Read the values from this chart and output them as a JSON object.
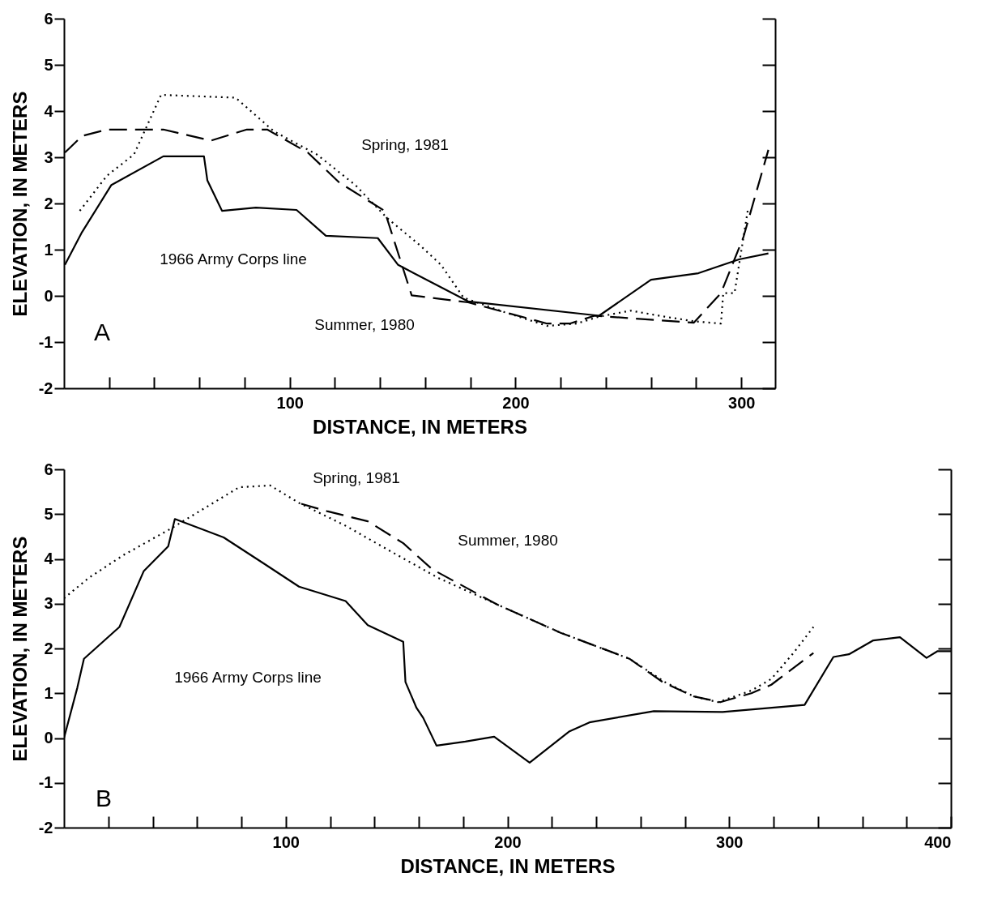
{
  "chart_data": [
    {
      "type": "line",
      "xlabel": "DISTANCE, IN METERS",
      "ylabel": "ELEVATION, IN METERS",
      "xlim": [
        0,
        315
      ],
      "ylim": [
        -2,
        6
      ],
      "xticks": [
        {
          "value": 20,
          "label": null
        },
        {
          "value": 40,
          "label": null
        },
        {
          "value": 60,
          "label": null
        },
        {
          "value": 80,
          "label": null
        },
        100,
        {
          "value": 120,
          "label": null
        },
        {
          "value": 140,
          "label": null
        },
        {
          "value": 160,
          "label": null
        },
        {
          "value": 180,
          "label": null
        },
        200,
        {
          "value": 220,
          "label": null
        },
        {
          "value": 240,
          "label": null
        },
        {
          "value": 260,
          "label": null
        },
        {
          "value": 280,
          "label": null
        },
        300
      ],
      "yticks": [
        -2,
        -1,
        0,
        1,
        2,
        3,
        4,
        5,
        6
      ],
      "annotations": [
        "Spring, 1981",
        "1966 Army Corps line",
        "Summer, 1980",
        "A"
      ],
      "series": [
        {
          "type": "line",
          "line_style": "solid",
          "color": "#000000",
          "x": [
            0.4,
            8,
            21,
            44,
            62,
            63.5,
            70,
            85,
            103,
            116,
            139,
            148,
            179,
            237,
            260,
            281,
            299,
            312
          ],
          "values": [
            0.67,
            1.38,
            2.4,
            3.02,
            3.02,
            2.5,
            1.84,
            1.91,
            1.86,
            1.3,
            1.25,
            0.67,
            -0.12,
            -0.43,
            0.35,
            0.49,
            0.79,
            0.92
          ]
        },
        {
          "type": "line",
          "line_style": "dashed",
          "color": "#000000",
          "x": [
            0.4,
            8,
            19,
            44,
            65,
            81,
            90,
            108,
            122,
            142,
            154,
            179,
            214,
            224,
            235,
            279,
            291,
            301,
            312
          ],
          "values": [
            3.1,
            3.46,
            3.6,
            3.6,
            3.36,
            3.6,
            3.6,
            3.1,
            2.45,
            1.84,
            0.01,
            -0.14,
            -0.6,
            -0.6,
            -0.43,
            -0.58,
            0.06,
            1.28,
            3.16
          ]
        },
        {
          "type": "line",
          "line_style": "dotted",
          "color": "#000000",
          "x": [
            7,
            19,
            31,
            43,
            76,
            93,
            112,
            129,
            143,
            158,
            167,
            177,
            195,
            214,
            227,
            237,
            251,
            266,
            279,
            291,
            292,
            297,
            303
          ],
          "values": [
            1.84,
            2.6,
            3.06,
            4.35,
            4.29,
            3.56,
            3.06,
            2.4,
            1.69,
            1.08,
            0.67,
            -0.04,
            -0.35,
            -0.65,
            -0.6,
            -0.45,
            -0.32,
            -0.45,
            -0.55,
            -0.6,
            0.06,
            0.06,
            1.89
          ]
        }
      ]
    },
    {
      "type": "line",
      "xlabel": "DISTANCE, IN METERS",
      "ylabel": "ELEVATION, IN METERS",
      "xlim": [
        0,
        400
      ],
      "ylim": [
        -2,
        6
      ],
      "xticks": [
        {
          "value": 20,
          "label": null
        },
        {
          "value": 40,
          "label": null
        },
        {
          "value": 60,
          "label": null
        },
        {
          "value": 80,
          "label": null
        },
        100,
        {
          "value": 120,
          "label": null
        },
        {
          "value": 140,
          "label": null
        },
        {
          "value": 160,
          "label": null
        },
        {
          "value": 180,
          "label": null
        },
        200,
        {
          "value": 220,
          "label": null
        },
        {
          "value": 240,
          "label": null
        },
        {
          "value": 260,
          "label": null
        },
        {
          "value": 280,
          "label": null
        },
        300,
        {
          "value": 320,
          "label": null
        },
        {
          "value": 340,
          "label": null
        },
        {
          "value": 360,
          "label": null
        },
        {
          "value": 380,
          "label": null
        },
        400
      ],
      "yticks": [
        -2,
        -1,
        0,
        1,
        2,
        3,
        4,
        5,
        6
      ],
      "annotations": [
        "Spring, 1981",
        "Summer, 1980",
        "1966 Army Corps line",
        "B"
      ],
      "series": [
        {
          "type": "line",
          "line_style": "solid",
          "color": "#000000",
          "x": [
            0,
            6,
            9,
            25,
            36,
            47,
            50,
            72,
            90,
            106,
            127,
            137,
            153,
            154,
            159,
            162,
            168,
            181,
            194,
            210,
            228,
            237,
            266,
            297,
            334,
            347,
            354,
            365,
            377,
            389,
            394,
            400
          ],
          "values": [
            0,
            1.12,
            1.77,
            2.48,
            3.73,
            4.28,
            4.89,
            4.48,
            3.9,
            3.38,
            3.06,
            2.52,
            2.15,
            1.25,
            0.67,
            0.45,
            -0.17,
            -0.08,
            0.03,
            -0.55,
            0.15,
            0.35,
            0.6,
            0.58,
            0.74,
            1.81,
            1.87,
            2.18,
            2.25,
            1.79,
            1.94,
            1.94
          ]
        },
        {
          "type": "line",
          "line_style": "dashed",
          "color": "#000000",
          "x": [
            107,
            119,
            137,
            153,
            166,
            195,
            224,
            255,
            270,
            284,
            296,
            310,
            319,
            338
          ],
          "values": [
            5.23,
            5.06,
            4.84,
            4.35,
            3.77,
            2.99,
            2.35,
            1.77,
            1.25,
            0.93,
            0.8,
            1.0,
            1.19,
            1.9
          ]
        },
        {
          "type": "line",
          "line_style": "dotted",
          "color": "#000000",
          "x": [
            0,
            11,
            27,
            48,
            64,
            79,
            93,
            106,
            127,
            148,
            169,
            195,
            224,
            255,
            271,
            284,
            295,
            310,
            319,
            329,
            338
          ],
          "values": [
            3.12,
            3.57,
            4.09,
            4.67,
            5.15,
            5.6,
            5.64,
            5.25,
            4.74,
            4.15,
            3.57,
            2.99,
            2.35,
            1.77,
            1.25,
            0.93,
            0.8,
            1.06,
            1.32,
            1.9,
            2.48
          ]
        }
      ]
    }
  ]
}
